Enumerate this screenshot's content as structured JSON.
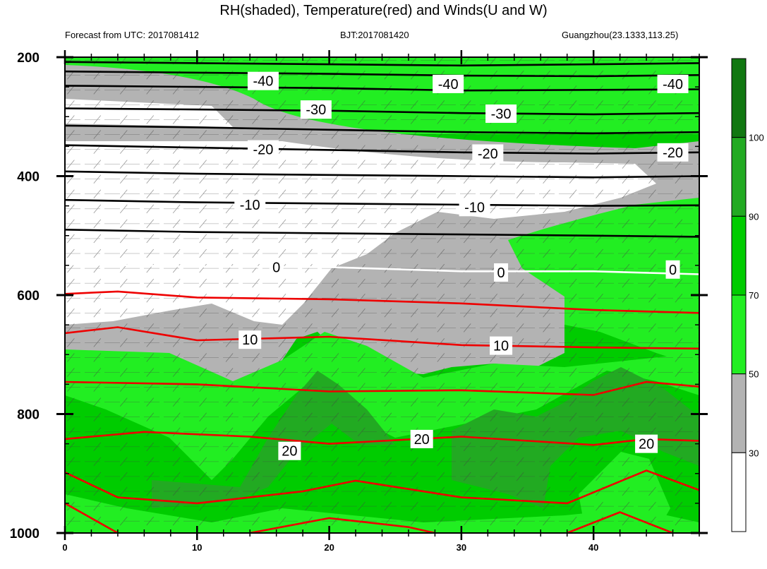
{
  "header": {
    "title": "RH(shaded), Temperature(red) and Winds(U and W)",
    "left": "Forecast from UTC: 2017081412",
    "middle": "BJT:2017081420",
    "right": "Guangzhou(23.1333,113.25)"
  },
  "chart_data": {
    "type": "contour",
    "x_ticks": [
      0,
      10,
      20,
      30,
      40
    ],
    "x_range": [
      0,
      48
    ],
    "y_ticks": [
      200,
      400,
      600,
      800,
      1000
    ],
    "y_range": [
      200,
      1000
    ],
    "y_inverted": true,
    "colorbar": {
      "labels": [
        30,
        50,
        70,
        90,
        100
      ],
      "colors": [
        "#ffffff",
        "#b3b3b3",
        "#22ee22",
        "#00cc00",
        "#22aa22",
        "#117711"
      ]
    },
    "temperature_labels": [
      {
        "x": 15,
        "p": 240,
        "text": "-40"
      },
      {
        "x": 29,
        "p": 245,
        "text": "-40"
      },
      {
        "x": 46,
        "p": 245,
        "text": "-40"
      },
      {
        "x": 19,
        "p": 288,
        "text": "-30"
      },
      {
        "x": 33,
        "p": 295,
        "text": "-30"
      },
      {
        "x": 15,
        "p": 355,
        "text": "-20"
      },
      {
        "x": 32,
        "p": 362,
        "text": "-20"
      },
      {
        "x": 46,
        "p": 360,
        "text": "-20"
      },
      {
        "x": 14,
        "p": 448,
        "text": "-10"
      },
      {
        "x": 31,
        "p": 452,
        "text": "-10"
      },
      {
        "x": 16,
        "p": 553,
        "text": "0"
      },
      {
        "x": 33,
        "p": 562,
        "text": "0"
      },
      {
        "x": 46,
        "p": 557,
        "text": "0"
      },
      {
        "x": 14,
        "p": 675,
        "text": "10"
      },
      {
        "x": 33,
        "p": 685,
        "text": "10"
      },
      {
        "x": 17,
        "p": 862,
        "text": "20"
      },
      {
        "x": 27,
        "p": 842,
        "text": "20"
      },
      {
        "x": 44,
        "p": 850,
        "text": "20"
      }
    ],
    "isotherm_levels": [
      -40,
      -30,
      -20,
      -10,
      0,
      10,
      20
    ]
  }
}
